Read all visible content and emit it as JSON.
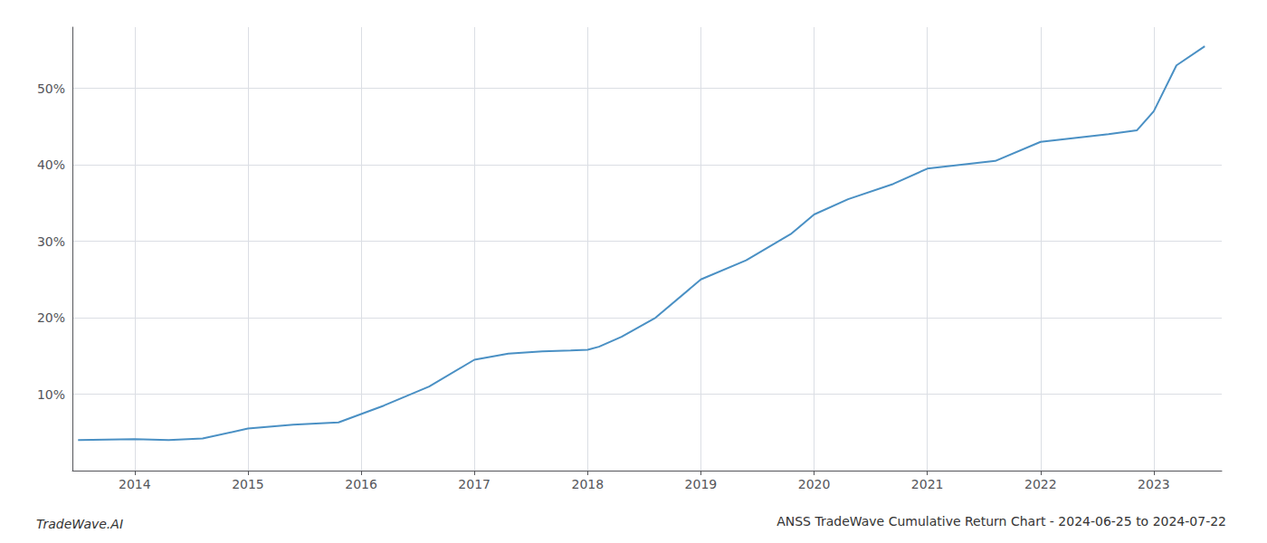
{
  "chart_data": {
    "type": "line",
    "title": "ANSS TradeWave Cumulative Return Chart - 2024-06-25 to 2024-07-22",
    "annotations": [
      "TradeWave.AI"
    ],
    "x": [
      2013.5,
      2014.0,
      2014.3,
      2014.6,
      2015.0,
      2015.4,
      2015.8,
      2016.2,
      2016.6,
      2017.0,
      2017.3,
      2017.6,
      2017.85,
      2018.0,
      2018.1,
      2018.3,
      2018.6,
      2019.0,
      2019.4,
      2019.8,
      2020.0,
      2020.3,
      2020.7,
      2021.0,
      2021.3,
      2021.6,
      2022.0,
      2022.3,
      2022.6,
      2022.85,
      2023.0,
      2023.2,
      2023.45
    ],
    "values": [
      4.0,
      4.1,
      4.0,
      4.2,
      5.5,
      6.0,
      6.3,
      8.5,
      11.0,
      14.5,
      15.3,
      15.6,
      15.7,
      15.8,
      16.2,
      17.5,
      20.0,
      25.0,
      27.5,
      31.0,
      33.5,
      35.5,
      37.5,
      39.5,
      40.0,
      40.5,
      43.0,
      43.5,
      44.0,
      44.5,
      47.0,
      53.0,
      55.5
    ],
    "color": "#4a90c4",
    "xlim": [
      2013.45,
      2023.6
    ],
    "ylim": [
      0,
      58
    ],
    "xticks": [
      2014,
      2015,
      2016,
      2017,
      2018,
      2019,
      2020,
      2021,
      2022,
      2023
    ],
    "yticks": [
      {
        "value": 10,
        "label": "10%"
      },
      {
        "value": 20,
        "label": "20%"
      },
      {
        "value": 30,
        "label": "30%"
      },
      {
        "value": 40,
        "label": "40%"
      },
      {
        "value": 50,
        "label": "50%"
      }
    ],
    "grid": true
  }
}
